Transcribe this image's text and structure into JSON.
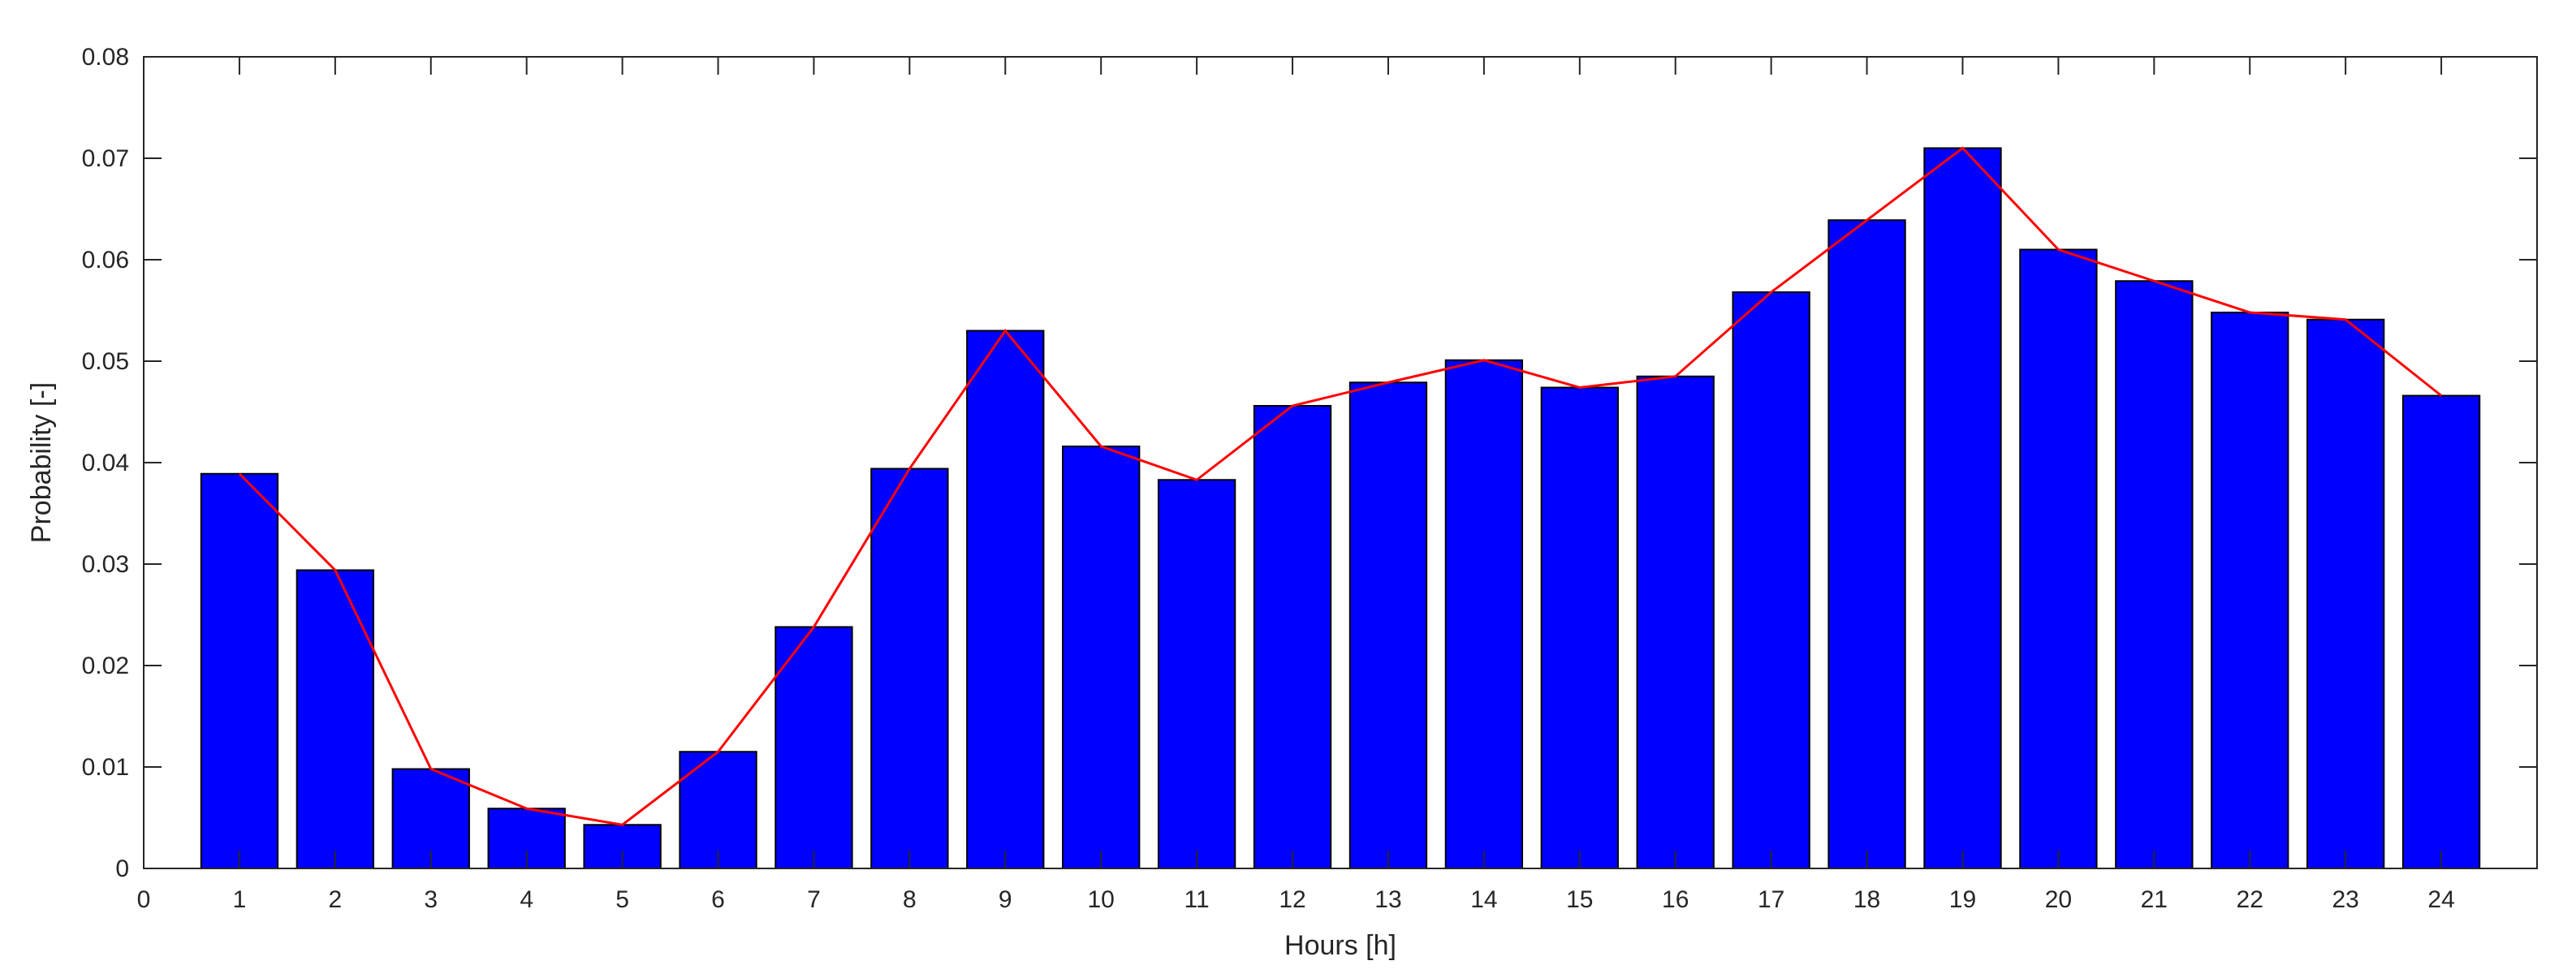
{
  "chart_data": {
    "type": "bar",
    "title": "",
    "xlabel": "Hours [h]",
    "ylabel": "Probability [-]",
    "xlim": [
      0,
      25
    ],
    "ylim": [
      0,
      0.08
    ],
    "x_ticks": [
      "0",
      "1",
      "2",
      "3",
      "4",
      "5",
      "6",
      "7",
      "8",
      "9",
      "10",
      "11",
      "12",
      "13",
      "14",
      "15",
      "16",
      "17",
      "18",
      "19",
      "20",
      "21",
      "22",
      "23",
      "24"
    ],
    "y_ticks": [
      "0",
      "0.01",
      "0.02",
      "0.03",
      "0.04",
      "0.05",
      "0.06",
      "0.07",
      "0.08"
    ],
    "categories": [
      1,
      2,
      3,
      4,
      5,
      6,
      7,
      8,
      9,
      10,
      11,
      12,
      13,
      14,
      15,
      16,
      17,
      18,
      19,
      20,
      21,
      22,
      23,
      24
    ],
    "series": [
      {
        "type": "bar",
        "color": "#0000ff",
        "values": [
          0.0389,
          0.0294,
          0.0098,
          0.0059,
          0.0043,
          0.0115,
          0.0238,
          0.0394,
          0.053,
          0.0416,
          0.0383,
          0.0456,
          0.0479,
          0.0501,
          0.0474,
          0.0485,
          0.0568,
          0.0639,
          0.071,
          0.061,
          0.0579,
          0.0548,
          0.0541,
          0.0466
        ]
      },
      {
        "type": "line",
        "color": "#ff0000",
        "values": [
          0.0389,
          0.0294,
          0.0098,
          0.0059,
          0.0043,
          0.0115,
          0.0238,
          0.0394,
          0.053,
          0.0416,
          0.0383,
          0.0456,
          0.0479,
          0.0501,
          0.0474,
          0.0485,
          0.0568,
          0.0639,
          0.071,
          0.061,
          0.0579,
          0.0548,
          0.0541,
          0.0466
        ]
      }
    ],
    "grid": false,
    "legend": "none"
  }
}
